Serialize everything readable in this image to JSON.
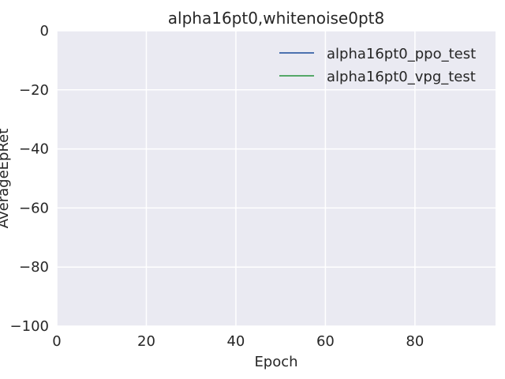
{
  "chart_data": {
    "type": "line",
    "title": "alpha16pt0,whitenoise0pt8",
    "xlabel": "Epoch",
    "ylabel": "AverageEpRet",
    "xlim": [
      0,
      98
    ],
    "ylim": [
      -100,
      0
    ],
    "xticks": [
      0,
      20,
      40,
      60,
      80
    ],
    "yticks": [
      0,
      -20,
      -40,
      -60,
      -80,
      -100
    ],
    "xtick_labels": [
      "0",
      "20",
      "40",
      "60",
      "80"
    ],
    "ytick_labels": [
      "0",
      "−20",
      "−40",
      "−60",
      "−80",
      "−100"
    ],
    "grid": true,
    "legend_position": "top-right",
    "series": [
      {
        "name": "alpha16pt0_ppo_test",
        "color": "#4c72b0",
        "x": [],
        "y": []
      },
      {
        "name": "alpha16pt0_vpg_test",
        "color": "#55a868",
        "x": [],
        "y": []
      }
    ],
    "colors": {
      "background": "#eaeaf2",
      "grid": "#ffffff"
    }
  }
}
